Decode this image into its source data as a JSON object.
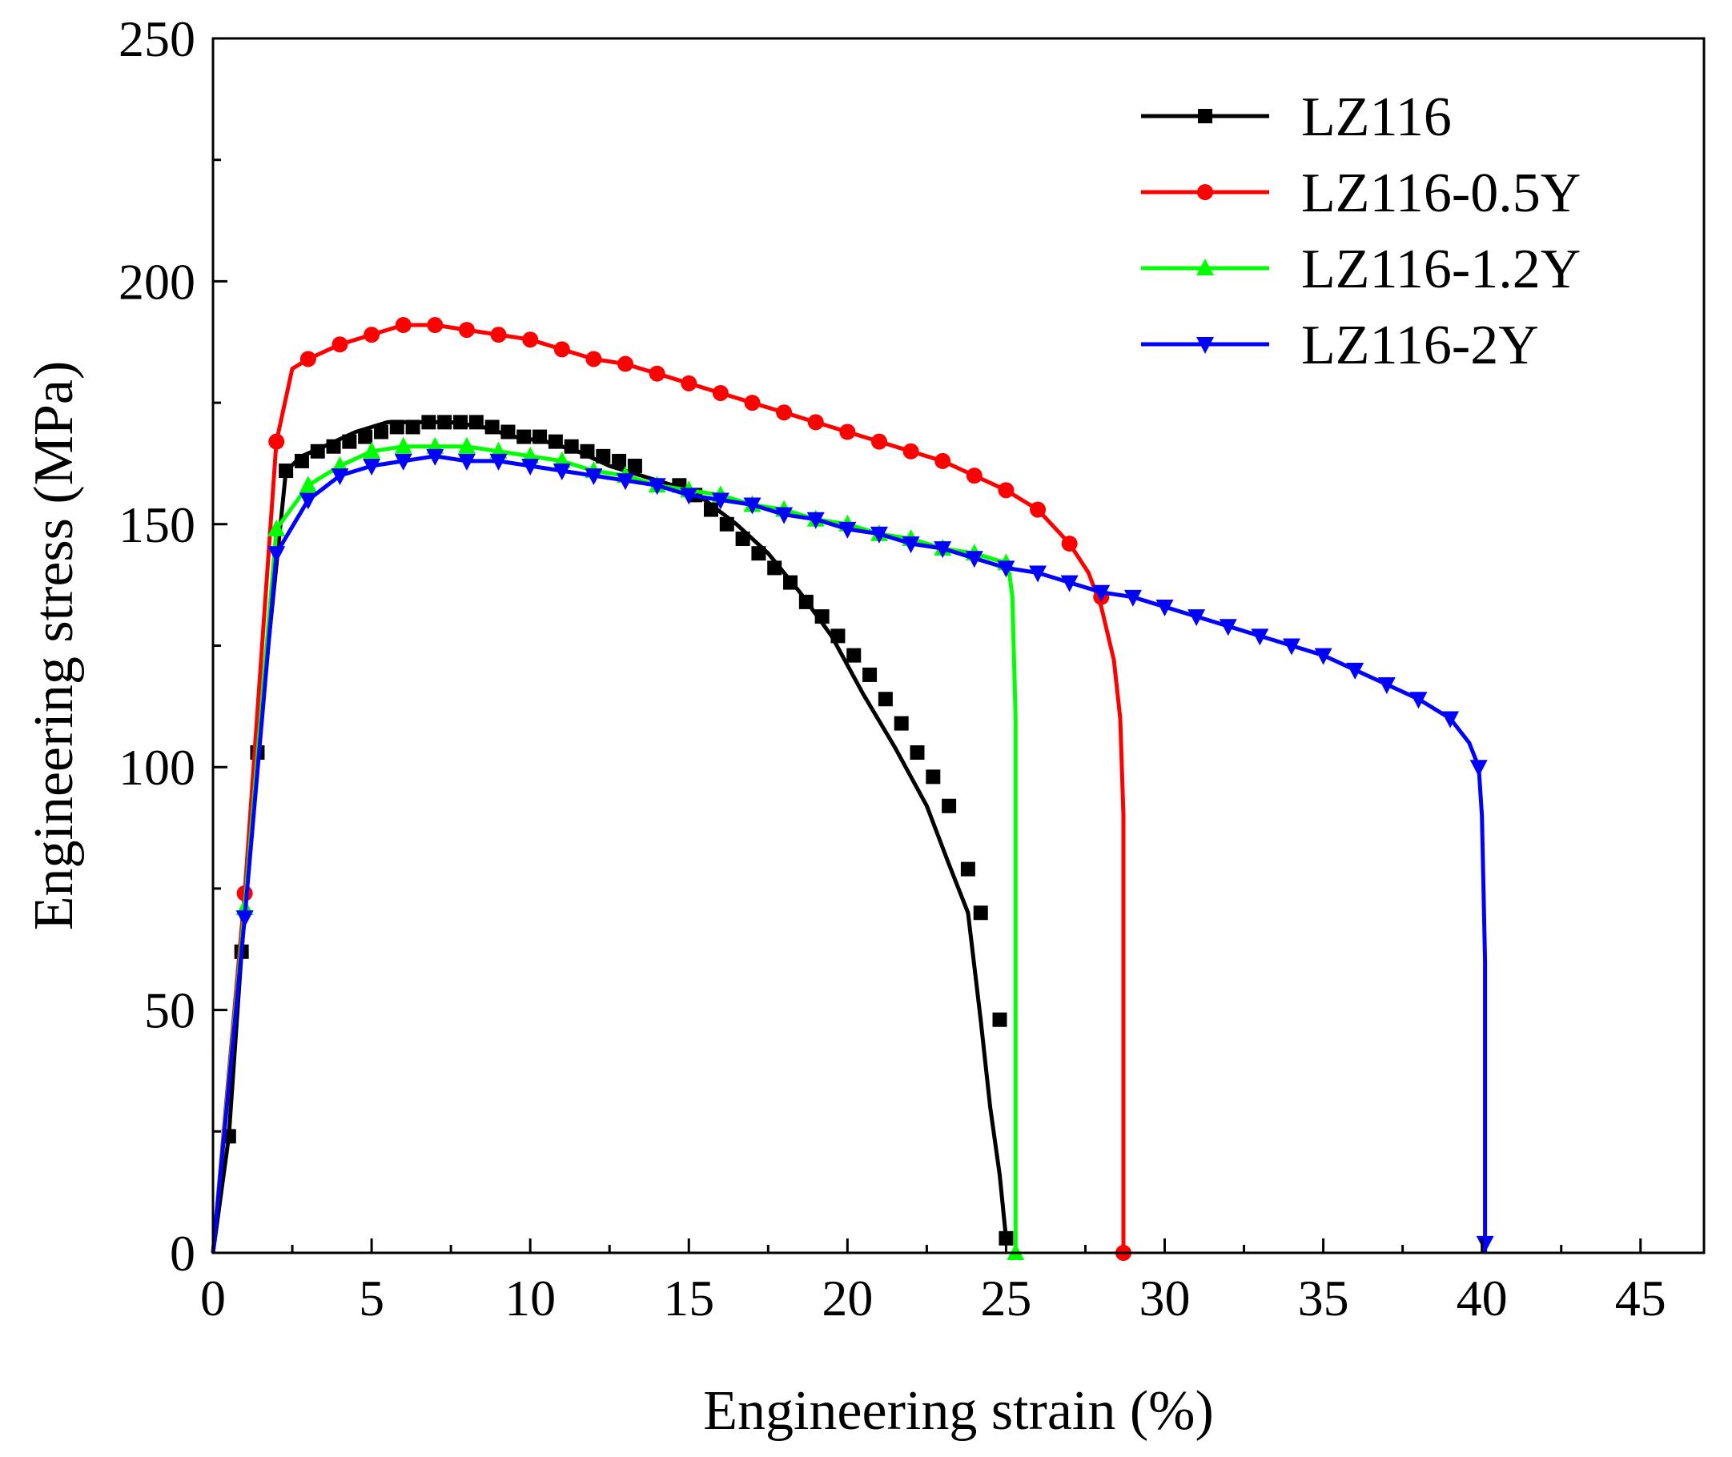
{
  "chart_data": {
    "type": "line",
    "title": "",
    "xlabel": "Engineering strain (%)",
    "ylabel": "Engineering stress (MPa)",
    "xlim": [
      0,
      47
    ],
    "ylim": [
      0,
      250
    ],
    "xticks": [
      0,
      5,
      10,
      15,
      20,
      25,
      30,
      35,
      40,
      45
    ],
    "yticks": [
      0,
      50,
      100,
      150,
      200,
      250
    ],
    "grid": false,
    "legend_position": "top-right",
    "series": [
      {
        "name": "LZ116",
        "color": "#000000",
        "marker": "square",
        "x": [
          0,
          0.5,
          0.9,
          1.4,
          2.3,
          2.8,
          3.5,
          4.5,
          5.5,
          6.5,
          7.5,
          8.5,
          9.5,
          10.5,
          11.5,
          12.5,
          13.5,
          14.5,
          15.5,
          16.5,
          17.5,
          18.5,
          19.5,
          20.5,
          21.5,
          22.5,
          23.2,
          23.8,
          24.2,
          24.5,
          24.8,
          25.0
        ],
        "y": [
          0,
          24,
          62,
          103,
          161,
          164,
          166,
          169,
          171,
          171,
          171,
          170,
          168,
          167,
          165,
          162,
          160,
          158,
          155,
          150,
          144,
          136,
          127,
          115,
          104,
          92,
          80,
          70,
          48,
          30,
          16,
          3
        ],
        "markers_x": [
          0.5,
          0.9,
          1.4,
          2.3,
          2.8,
          3.3,
          3.8,
          4.3,
          4.8,
          5.3,
          5.8,
          6.3,
          6.8,
          7.3,
          7.8,
          8.3,
          8.8,
          9.3,
          9.8,
          10.3,
          10.8,
          11.3,
          11.8,
          12.3,
          12.8,
          13.3,
          14.7,
          15.2,
          15.7,
          16.2,
          16.7,
          17.2,
          17.7,
          18.2,
          18.7,
          19.2,
          19.7,
          20.2,
          20.7,
          21.2,
          21.7,
          22.2,
          22.7,
          23.2,
          23.8,
          24.2,
          24.8,
          25.0
        ],
        "markers_y": [
          24,
          62,
          103,
          161,
          163,
          165,
          166,
          167,
          168,
          169,
          170,
          170,
          171,
          171,
          171,
          171,
          170,
          169,
          168,
          168,
          167,
          166,
          165,
          164,
          163,
          162,
          158,
          156,
          153,
          150,
          147,
          144,
          141,
          138,
          134,
          131,
          127,
          123,
          119,
          114,
          109,
          103,
          98,
          92,
          79,
          70,
          48,
          3
        ]
      },
      {
        "name": "LZ116-0.5Y",
        "color": "#ff0000",
        "marker": "circle",
        "x": [
          0,
          1.0,
          2.0,
          2.5,
          3.0,
          4.0,
          5.0,
          6.0,
          7.0,
          8.0,
          9.0,
          10.0,
          11.0,
          12.0,
          13.0,
          14.0,
          15.0,
          16.0,
          17.0,
          18.0,
          19.0,
          20.0,
          21.0,
          22.0,
          23.0,
          24.0,
          25.0,
          26.0,
          27.0,
          27.6,
          28.0,
          28.4,
          28.6,
          28.7,
          28.7
        ],
        "y": [
          0,
          74,
          167,
          182,
          184,
          187,
          189,
          191,
          191,
          190,
          189,
          188,
          186,
          184,
          183,
          181,
          179,
          177,
          175,
          173,
          171,
          169,
          167,
          165,
          163,
          160,
          157,
          153,
          146,
          140,
          133,
          122,
          110,
          90,
          0
        ],
        "markers_x": [
          1.0,
          2.0,
          3.0,
          4.0,
          5.0,
          6.0,
          7.0,
          8.0,
          9.0,
          10.0,
          11.0,
          12.0,
          13.0,
          14.0,
          15.0,
          16.0,
          17.0,
          18.0,
          19.0,
          20.0,
          21.0,
          22.0,
          23.0,
          24.0,
          25.0,
          26.0,
          27.0,
          28.0,
          28.7
        ],
        "markers_y": [
          74,
          167,
          184,
          187,
          189,
          191,
          191,
          190,
          189,
          188,
          186,
          184,
          183,
          181,
          179,
          177,
          175,
          173,
          171,
          169,
          167,
          165,
          163,
          160,
          157,
          153,
          146,
          135,
          0
        ]
      },
      {
        "name": "LZ116-1.2Y",
        "color": "#00ff00",
        "marker": "triangle-up",
        "x": [
          0,
          1.0,
          2.0,
          3.0,
          4.0,
          5.0,
          6.0,
          7.0,
          8.0,
          9.0,
          10.0,
          11.0,
          12.0,
          13.0,
          14.0,
          15.0,
          16.0,
          17.0,
          18.0,
          19.0,
          20.0,
          21.0,
          22.0,
          23.0,
          24.0,
          25.0,
          25.1,
          25.2,
          25.3,
          25.3
        ],
        "y": [
          0,
          71,
          149,
          158,
          162,
          165,
          166,
          166,
          166,
          165,
          164,
          163,
          161,
          160,
          158,
          157,
          156,
          154,
          153,
          151,
          150,
          148,
          147,
          145,
          144,
          142,
          140,
          135,
          110,
          0
        ],
        "markers_x": [
          1.0,
          2.0,
          3.0,
          4.0,
          5.0,
          6.0,
          7.0,
          8.0,
          9.0,
          10.0,
          11.0,
          12.0,
          13.0,
          14.0,
          15.0,
          16.0,
          17.0,
          18.0,
          19.0,
          20.0,
          21.0,
          22.0,
          23.0,
          24.0,
          25.0,
          25.3
        ],
        "markers_y": [
          71,
          149,
          158,
          162,
          165,
          166,
          166,
          166,
          165,
          164,
          163,
          161,
          160,
          158,
          157,
          156,
          154,
          153,
          151,
          150,
          148,
          147,
          145,
          144,
          142,
          0
        ]
      },
      {
        "name": "LZ116-2Y",
        "color": "#0000ff",
        "marker": "triangle-down",
        "x": [
          0,
          1.0,
          2.0,
          3.0,
          4.0,
          5.0,
          6.0,
          7.0,
          8.0,
          9.0,
          10.0,
          11.0,
          12.0,
          13.0,
          14.0,
          15.0,
          16.0,
          17.0,
          18.0,
          19.0,
          20.0,
          21.0,
          22.0,
          23.0,
          24.0,
          25.0,
          26.0,
          27.0,
          28.0,
          29.0,
          30.0,
          31.0,
          32.0,
          33.0,
          34.0,
          35.0,
          36.0,
          37.0,
          38.0,
          39.0,
          39.6,
          39.9,
          40.0,
          40.1,
          40.1
        ],
        "y": [
          0,
          69,
          144,
          155,
          160,
          162,
          163,
          164,
          163,
          163,
          162,
          161,
          160,
          159,
          158,
          156,
          155,
          154,
          152,
          151,
          149,
          148,
          146,
          145,
          143,
          141,
          140,
          138,
          136,
          135,
          133,
          131,
          129,
          127,
          125,
          123,
          120,
          117,
          114,
          110,
          105,
          100,
          90,
          60,
          0
        ],
        "markers_x": [
          1.0,
          2.0,
          3.0,
          4.0,
          5.0,
          6.0,
          7.0,
          8.0,
          9.0,
          10.0,
          11.0,
          12.0,
          13.0,
          14.0,
          15.0,
          16.0,
          17.0,
          18.0,
          19.0,
          20.0,
          21.0,
          22.0,
          23.0,
          24.0,
          25.0,
          26.0,
          27.0,
          28.0,
          29.0,
          30.0,
          31.0,
          32.0,
          33.0,
          34.0,
          35.0,
          36.0,
          37.0,
          38.0,
          39.0,
          39.9,
          40.1
        ],
        "markers_y": [
          69,
          144,
          155,
          160,
          162,
          163,
          164,
          163,
          163,
          162,
          161,
          160,
          159,
          158,
          156,
          155,
          154,
          152,
          151,
          149,
          148,
          146,
          145,
          143,
          141,
          140,
          138,
          136,
          135,
          133,
          131,
          129,
          127,
          125,
          123,
          120,
          117,
          114,
          110,
          100,
          2
        ]
      }
    ]
  }
}
